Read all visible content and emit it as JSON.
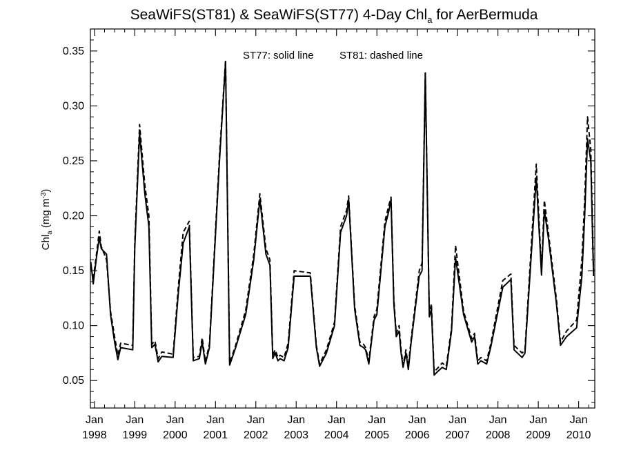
{
  "chart_data": {
    "type": "line",
    "title_main": "SeaWiFS(ST81) & SeaWiFS(ST77) 4-Day Chl",
    "title_sub": "a",
    "title_tail": " for AerBermuda",
    "annotation_solid": "ST77: solid line",
    "annotation_dashed": "ST81: dashed line",
    "ylabel_main": "Chl",
    "ylabel_sub": "a",
    "ylabel_units_open": " (mg m",
    "ylabel_units_sup": "-3",
    "ylabel_units_close": ")",
    "xlim": [
      1997.9,
      2010.4
    ],
    "ylim": [
      0.025,
      0.37
    ],
    "y_ticks": [
      0.05,
      0.1,
      0.15,
      0.2,
      0.25,
      0.3,
      0.35
    ],
    "y_tick_labels": [
      "0.05",
      "0.10",
      "0.15",
      "0.20",
      "0.25",
      "0.30",
      "0.35"
    ],
    "x_ticks": [
      1998,
      1999,
      2000,
      2001,
      2002,
      2003,
      2004,
      2005,
      2006,
      2007,
      2008,
      2009,
      2010
    ],
    "x_tick_month": "Jan",
    "x_tick_years": [
      "1998",
      "1999",
      "2000",
      "2001",
      "2002",
      "2003",
      "2004",
      "2005",
      "2006",
      "2007",
      "2008",
      "2009",
      "2010"
    ],
    "grid": false,
    "series": [
      {
        "name": "ST77",
        "style": "solid",
        "color": "#000000",
        "x": [
          1997.91,
          1997.97,
          1998.05,
          1998.12,
          1998.17,
          1998.3,
          1998.4,
          1998.5,
          1998.58,
          1998.65,
          1998.95,
          1999.0,
          1999.12,
          1999.25,
          1999.35,
          1999.42,
          1999.5,
          1999.58,
          1999.67,
          1999.95,
          2000.08,
          2000.2,
          2000.35,
          2000.45,
          2000.6,
          2000.67,
          2000.75,
          2000.85,
          2001.1,
          2001.25,
          2001.35,
          2001.5,
          2001.75,
          2001.95,
          2002.1,
          2002.25,
          2002.35,
          2002.42,
          2002.48,
          2002.55,
          2002.6,
          2002.7,
          2002.8,
          2002.95,
          2003.35,
          2003.5,
          2003.58,
          2003.75,
          2003.95,
          2004.1,
          2004.25,
          2004.3,
          2004.45,
          2004.58,
          2004.67,
          2004.72,
          2004.8,
          2004.93,
          2005.0,
          2005.2,
          2005.3,
          2005.35,
          2005.42,
          2005.48,
          2005.55,
          2005.6,
          2005.65,
          2005.72,
          2005.78,
          2005.85,
          2006.05,
          2006.12,
          2006.2,
          2006.3,
          2006.35,
          2006.42,
          2006.5,
          2006.62,
          2006.72,
          2006.85,
          2006.95,
          2007.15,
          2007.35,
          2007.42,
          2007.5,
          2007.58,
          2007.72,
          2007.82,
          2008.12,
          2008.32,
          2008.4,
          2008.6,
          2008.67,
          2008.88,
          2008.95,
          2009.08,
          2009.15,
          2009.25,
          2009.45,
          2009.55,
          2009.7,
          2009.95,
          2010.08,
          2010.15,
          2010.22,
          2010.3,
          2010.37
        ],
        "y": [
          0.158,
          0.138,
          0.162,
          0.18,
          0.17,
          0.165,
          0.11,
          0.085,
          0.069,
          0.08,
          0.078,
          0.17,
          0.275,
          0.22,
          0.19,
          0.08,
          0.083,
          0.067,
          0.072,
          0.071,
          0.13,
          0.175,
          0.19,
          0.068,
          0.07,
          0.085,
          0.065,
          0.08,
          0.25,
          0.34,
          0.064,
          0.08,
          0.11,
          0.16,
          0.215,
          0.165,
          0.155,
          0.07,
          0.075,
          0.068,
          0.07,
          0.068,
          0.08,
          0.145,
          0.145,
          0.08,
          0.063,
          0.075,
          0.1,
          0.185,
          0.2,
          0.215,
          0.115,
          0.082,
          0.08,
          0.078,
          0.065,
          0.105,
          0.11,
          0.19,
          0.205,
          0.215,
          0.12,
          0.09,
          0.095,
          0.075,
          0.062,
          0.075,
          0.06,
          0.085,
          0.145,
          0.15,
          0.33,
          0.108,
          0.115,
          0.055,
          0.058,
          0.062,
          0.06,
          0.095,
          0.162,
          0.11,
          0.085,
          0.09,
          0.065,
          0.068,
          0.065,
          0.08,
          0.135,
          0.142,
          0.078,
          0.071,
          0.075,
          0.195,
          0.235,
          0.146,
          0.205,
          0.18,
          0.12,
          0.082,
          0.09,
          0.098,
          0.145,
          0.2,
          0.27,
          0.25,
          0.145
        ]
      },
      {
        "name": "ST81",
        "style": "dashed",
        "color": "#000000",
        "x": [
          1997.91,
          1997.97,
          1998.05,
          1998.12,
          1998.17,
          1998.3,
          1998.4,
          1998.5,
          1998.58,
          1998.65,
          1998.95,
          1999.0,
          1999.12,
          1999.25,
          1999.35,
          1999.42,
          1999.5,
          1999.58,
          1999.67,
          1999.95,
          2000.08,
          2000.2,
          2000.35,
          2000.45,
          2000.6,
          2000.67,
          2000.75,
          2000.85,
          2001.1,
          2001.25,
          2001.35,
          2001.5,
          2001.75,
          2001.95,
          2002.1,
          2002.25,
          2002.35,
          2002.42,
          2002.48,
          2002.55,
          2002.6,
          2002.7,
          2002.8,
          2002.95,
          2003.35,
          2003.5,
          2003.58,
          2003.75,
          2003.95,
          2004.1,
          2004.25,
          2004.3,
          2004.45,
          2004.58,
          2004.67,
          2004.72,
          2004.8,
          2004.93,
          2005.0,
          2005.2,
          2005.3,
          2005.35,
          2005.42,
          2005.48,
          2005.55,
          2005.6,
          2005.65,
          2005.72,
          2005.78,
          2005.85,
          2006.05,
          2006.12,
          2006.2,
          2006.3,
          2006.35,
          2006.42,
          2006.5,
          2006.62,
          2006.72,
          2006.85,
          2006.95,
          2007.15,
          2007.35,
          2007.42,
          2007.5,
          2007.58,
          2007.72,
          2007.82,
          2008.12,
          2008.32,
          2008.4,
          2008.6,
          2008.67,
          2008.88,
          2008.95,
          2009.08,
          2009.15,
          2009.25,
          2009.45,
          2009.55,
          2009.7,
          2009.95,
          2010.08,
          2010.15,
          2010.22,
          2010.3,
          2010.37
        ],
        "y": [
          0.155,
          0.142,
          0.165,
          0.186,
          0.172,
          0.16,
          0.113,
          0.09,
          0.073,
          0.084,
          0.082,
          0.175,
          0.283,
          0.228,
          0.2,
          0.083,
          0.086,
          0.07,
          0.076,
          0.074,
          0.136,
          0.185,
          0.195,
          0.071,
          0.072,
          0.089,
          0.067,
          0.083,
          0.255,
          0.342,
          0.066,
          0.082,
          0.114,
          0.165,
          0.22,
          0.17,
          0.16,
          0.073,
          0.078,
          0.071,
          0.073,
          0.071,
          0.084,
          0.15,
          0.148,
          0.082,
          0.065,
          0.078,
          0.103,
          0.19,
          0.205,
          0.218,
          0.118,
          0.085,
          0.083,
          0.08,
          0.068,
          0.108,
          0.115,
          0.195,
          0.21,
          0.217,
          0.124,
          0.093,
          0.1,
          0.078,
          0.064,
          0.078,
          0.063,
          0.088,
          0.15,
          0.157,
          0.33,
          0.11,
          0.12,
          0.058,
          0.061,
          0.066,
          0.063,
          0.098,
          0.173,
          0.113,
          0.088,
          0.093,
          0.068,
          0.071,
          0.068,
          0.083,
          0.141,
          0.147,
          0.082,
          0.075,
          0.078,
          0.205,
          0.247,
          0.15,
          0.214,
          0.185,
          0.124,
          0.085,
          0.095,
          0.105,
          0.16,
          0.215,
          0.29,
          0.26,
          0.15
        ]
      }
    ]
  }
}
